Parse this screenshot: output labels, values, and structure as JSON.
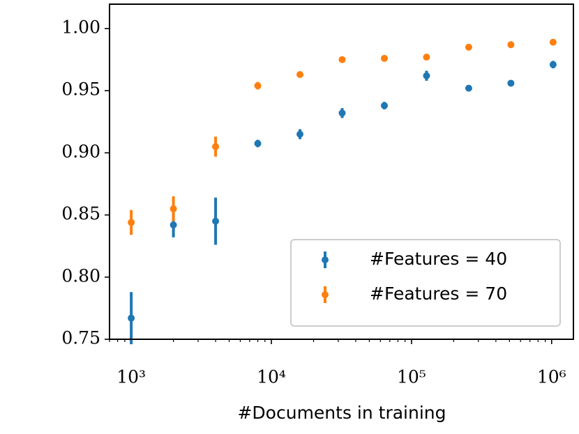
{
  "chart_data": {
    "type": "errorbar",
    "x": [
      1000,
      2000,
      4000,
      8000,
      16000,
      32000,
      64000,
      128000,
      256000,
      512000,
      1024000
    ],
    "series": [
      {
        "name": "#Features = 40",
        "color": "#1f77b4",
        "values": [
          0.767,
          0.842,
          0.845,
          0.9075,
          0.915,
          0.932,
          0.938,
          0.962,
          0.952,
          0.956,
          0.971
        ],
        "errors": [
          0.021,
          0.01,
          0.019,
          0.003,
          0.004,
          0.004,
          0.003,
          0.004,
          0.002,
          0.002,
          0.003
        ]
      },
      {
        "name": "#Features = 70",
        "color": "#ff7f0e",
        "values": [
          0.844,
          0.855,
          0.905,
          0.954,
          0.963,
          0.975,
          0.976,
          0.977,
          0.985,
          0.987,
          0.989
        ],
        "errors": [
          0.01,
          0.01,
          0.008,
          0.003,
          0.002,
          0.001,
          0.001,
          0.002,
          0.001,
          0.001,
          0.001
        ]
      }
    ],
    "x_label": "#Documents in training",
    "xlog": true,
    "xlim": [
      700,
      1430000
    ],
    "xticks": [
      {
        "value": 1000,
        "label": "10³"
      },
      {
        "value": 10000,
        "label": "10⁴"
      },
      {
        "value": 100000,
        "label": "10⁵"
      },
      {
        "value": 1000000,
        "label": "10⁶"
      }
    ],
    "ylim": [
      0.75,
      1.0196
    ],
    "yticks": [
      0.75,
      {
        "value": 0.8,
        "label": "0.80"
      },
      0.85,
      {
        "value": 0.9,
        "label": "0.90"
      },
      0.95,
      {
        "value": 1,
        "label": "1.00"
      }
    ],
    "legend": "lower right"
  }
}
